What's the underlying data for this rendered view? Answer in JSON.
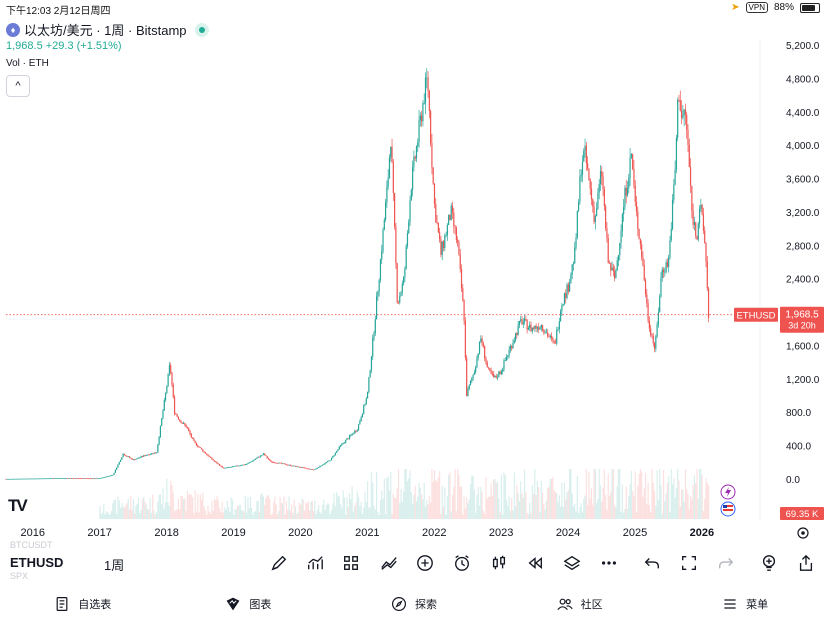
{
  "status_bar": {
    "time_date": "下午12:03   2月12日周四",
    "vpn": "VPN",
    "battery": "88%",
    "battery_level": 0.88
  },
  "header": {
    "coin_badge": "♦",
    "symbol_title": "以太坊/美元 · 1周 · Bitstamp",
    "price_change": "1,968.5  +29.3 (+1.51%)",
    "vol_label": "Vol · ETH",
    "collapse_glyph": "^"
  },
  "chart_data": {
    "type": "candlestick",
    "symbol": "ETHUSD",
    "interval": "1周",
    "x_tick_labels": [
      "2016",
      "2017",
      "2018",
      "2019",
      "2020",
      "2021",
      "2022",
      "2023",
      "2024",
      "2025",
      "2026"
    ],
    "y_tick_labels": [
      "5,200.0",
      "4,800.0",
      "4,400.0",
      "4,000.0",
      "3,600.0",
      "3,200.0",
      "2,800.0",
      "2,400.0",
      "2,000.0",
      "1,600.0",
      "1,200.0",
      "800.0",
      "400.0",
      "0.0"
    ],
    "y_ticks": [
      5200,
      4800,
      4400,
      4000,
      3600,
      3200,
      2800,
      2400,
      2000,
      1600,
      1200,
      800,
      400,
      0
    ],
    "ylim": [
      0,
      5200
    ],
    "last_price": 1968.5,
    "last_price_label": "1,968.5",
    "countdown": "3d 20h",
    "volume_label": "69.35 K",
    "up_color": "#26a69a",
    "down_color": "#ef5350",
    "price_path": [
      [
        2015.6,
        1
      ],
      [
        2016.2,
        8
      ],
      [
        2016.5,
        12
      ],
      [
        2016.9,
        8
      ],
      [
        2017.0,
        9
      ],
      [
        2017.2,
        50
      ],
      [
        2017.35,
        300
      ],
      [
        2017.5,
        230
      ],
      [
        2017.7,
        290
      ],
      [
        2017.85,
        320
      ],
      [
        2018.0,
        1100
      ],
      [
        2018.05,
        1380
      ],
      [
        2018.12,
        800
      ],
      [
        2018.2,
        700
      ],
      [
        2018.3,
        620
      ],
      [
        2018.4,
        450
      ],
      [
        2018.55,
        330
      ],
      [
        2018.7,
        220
      ],
      [
        2018.85,
        130
      ],
      [
        2019.0,
        150
      ],
      [
        2019.2,
        180
      ],
      [
        2019.45,
        300
      ],
      [
        2019.55,
        210
      ],
      [
        2019.75,
        180
      ],
      [
        2020.0,
        140
      ],
      [
        2020.2,
        110
      ],
      [
        2020.45,
        230
      ],
      [
        2020.6,
        400
      ],
      [
        2020.85,
        600
      ],
      [
        2021.0,
        1000
      ],
      [
        2021.1,
        1800
      ],
      [
        2021.3,
        3500
      ],
      [
        2021.35,
        4100
      ],
      [
        2021.45,
        2100
      ],
      [
        2021.55,
        2400
      ],
      [
        2021.65,
        3500
      ],
      [
        2021.85,
        4600
      ],
      [
        2021.9,
        4800
      ],
      [
        2022.0,
        3300
      ],
      [
        2022.1,
        2700
      ],
      [
        2022.25,
        3200
      ],
      [
        2022.35,
        2800
      ],
      [
        2022.45,
        1900
      ],
      [
        2022.48,
        1000
      ],
      [
        2022.6,
        1300
      ],
      [
        2022.7,
        1700
      ],
      [
        2022.8,
        1300
      ],
      [
        2022.9,
        1200
      ],
      [
        2023.0,
        1300
      ],
      [
        2023.2,
        1700
      ],
      [
        2023.3,
        1900
      ],
      [
        2023.45,
        1800
      ],
      [
        2023.6,
        1850
      ],
      [
        2023.8,
        1600
      ],
      [
        2023.9,
        2100
      ],
      [
        2024.0,
        2300
      ],
      [
        2024.1,
        2700
      ],
      [
        2024.2,
        3800
      ],
      [
        2024.25,
        3900
      ],
      [
        2024.4,
        3100
      ],
      [
        2024.5,
        3700
      ],
      [
        2024.6,
        2600
      ],
      [
        2024.7,
        2400
      ],
      [
        2024.85,
        3400
      ],
      [
        2024.95,
        3900
      ],
      [
        2025.0,
        3300
      ],
      [
        2025.1,
        2700
      ],
      [
        2025.2,
        1900
      ],
      [
        2025.3,
        1550
      ],
      [
        2025.4,
        2500
      ],
      [
        2025.5,
        2600
      ],
      [
        2025.6,
        3700
      ],
      [
        2025.65,
        4700
      ],
      [
        2025.7,
        4300
      ],
      [
        2025.75,
        4400
      ],
      [
        2025.8,
        3900
      ],
      [
        2025.85,
        3200
      ],
      [
        2025.92,
        2900
      ],
      [
        2025.97,
        3300
      ],
      [
        2026.05,
        2800
      ],
      [
        2026.1,
        1968.5
      ]
    ],
    "x_label_years": [
      2016,
      2017,
      2018,
      2019,
      2020,
      2021,
      2022,
      2023,
      2024,
      2025,
      2026
    ],
    "x_range": [
      2015.6,
      2026.45
    ]
  },
  "toolbar": {
    "symbol": "ETHUSD",
    "interval": "1周",
    "ghost_top": "BTCUSDT",
    "ghost_bottom": "SPX",
    "tv_logo": "TV"
  },
  "nav": {
    "watchlist": "自选表",
    "chart": "图表",
    "explore": "探索",
    "community": "社区",
    "menu": "菜单"
  }
}
